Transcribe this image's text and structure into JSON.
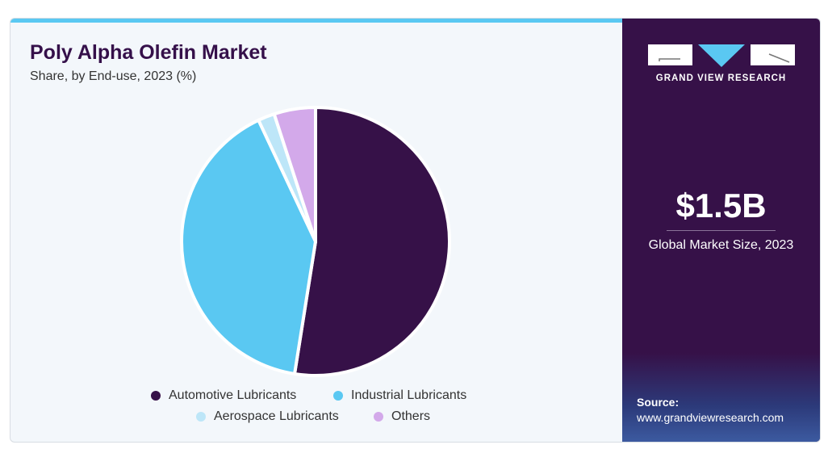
{
  "chart_data": {
    "type": "pie",
    "title": "Poly Alpha Olefin Market",
    "subtitle": "Share, by End-use, 2023 (%)",
    "categories": [
      "Automotive Lubricants",
      "Industrial Lubricants",
      "Aerospace Lubricants",
      "Others"
    ],
    "values": [
      52.5,
      40.5,
      2.0,
      5.0
    ],
    "colors": [
      "#361148",
      "#5ac8f2",
      "#bde6f8",
      "#d3a9ea"
    ],
    "legend_position": "bottom"
  },
  "side": {
    "logo_text": "GRAND VIEW RESEARCH",
    "market_size": "$1.5B",
    "market_label": "Global Market Size, 2023",
    "source_label": "Source:",
    "source_url": "www.grandviewresearch.com"
  }
}
